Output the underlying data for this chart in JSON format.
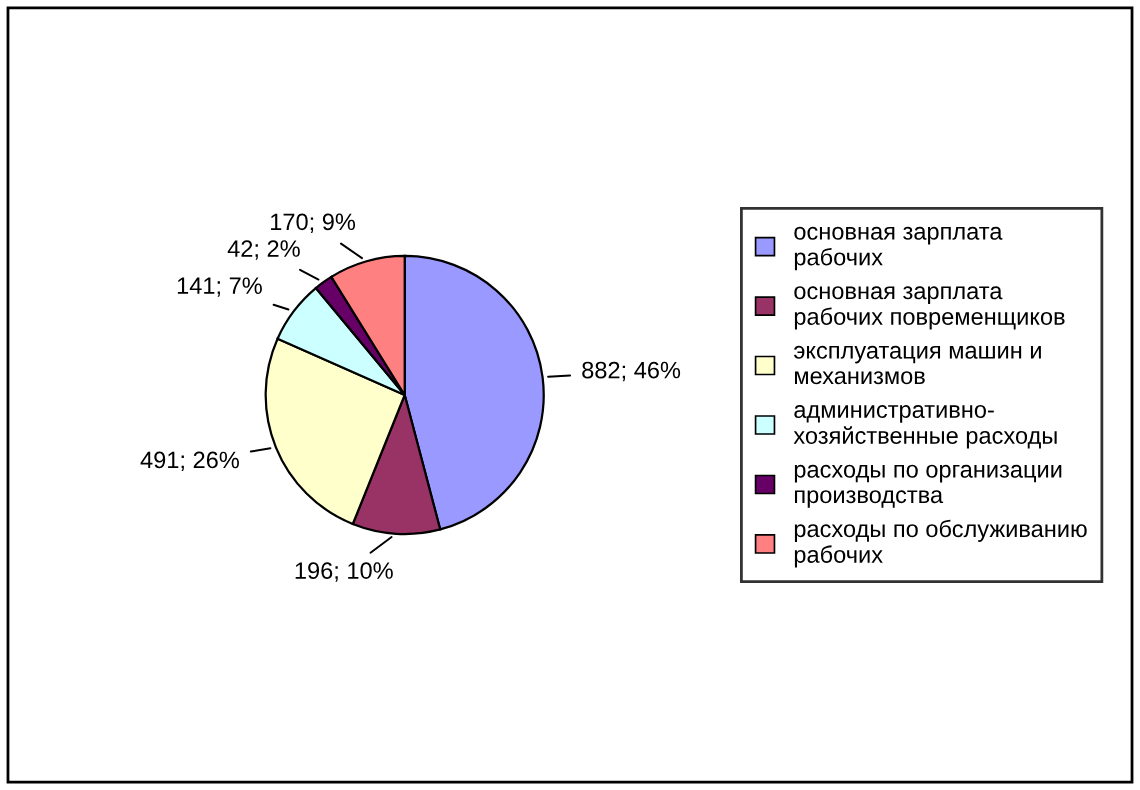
{
  "chart_data": {
    "type": "pie",
    "categories": [
      "основная зарплата рабочих",
      "основная зарплата рабочих повременщиков",
      "эксплуатация машин и механизмов",
      "административно-хозяйственные расходы",
      "расходы по организации производства",
      "расходы по обслуживанию рабочих"
    ],
    "values": [
      882,
      196,
      491,
      141,
      42,
      170
    ],
    "colors": [
      "#9999ff",
      "#993366",
      "#ffffcc",
      "#ccffff",
      "#660066",
      "#ff8080"
    ],
    "value_labels": [
      "882; 46%",
      "196; 10%",
      "491; 26%",
      "141; 7%",
      "42; 2%",
      "170; 9%"
    ],
    "legend": "right"
  }
}
